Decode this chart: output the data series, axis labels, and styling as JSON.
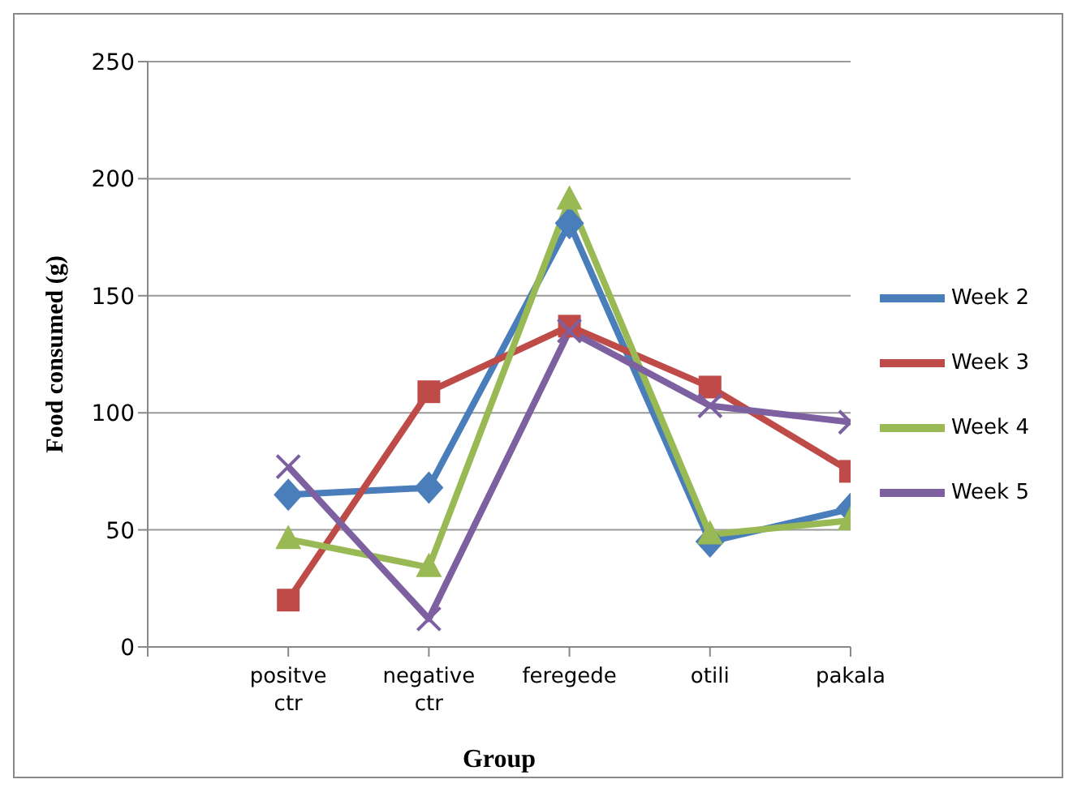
{
  "chart_data": {
    "type": "line",
    "xlabel": "Group",
    "ylabel": "Food consumed (g)",
    "categories": [
      null,
      "positve ctr",
      "negative ctr",
      "feregede",
      "otili",
      "pakala"
    ],
    "series": [
      {
        "name": "Week 2",
        "color": "#4a7ebb",
        "marker": "diamond",
        "values": [
          null,
          65,
          68,
          181,
          45,
          59
        ]
      },
      {
        "name": "Week 3",
        "color": "#be4b48",
        "marker": "square",
        "values": [
          null,
          20,
          109,
          137,
          111,
          75
        ]
      },
      {
        "name": "Week 4",
        "color": "#98b954",
        "marker": "triangle",
        "values": [
          null,
          46,
          34,
          191,
          48,
          54
        ]
      },
      {
        "name": "Week 5",
        "color": "#7d60a0",
        "marker": "cross",
        "values": [
          null,
          77,
          12,
          135,
          103,
          96
        ]
      }
    ],
    "ylim": [
      0,
      250
    ],
    "yticks": [
      0,
      50,
      100,
      150,
      200,
      250
    ],
    "grid": "y",
    "legend": "right",
    "line_style": "solid"
  }
}
